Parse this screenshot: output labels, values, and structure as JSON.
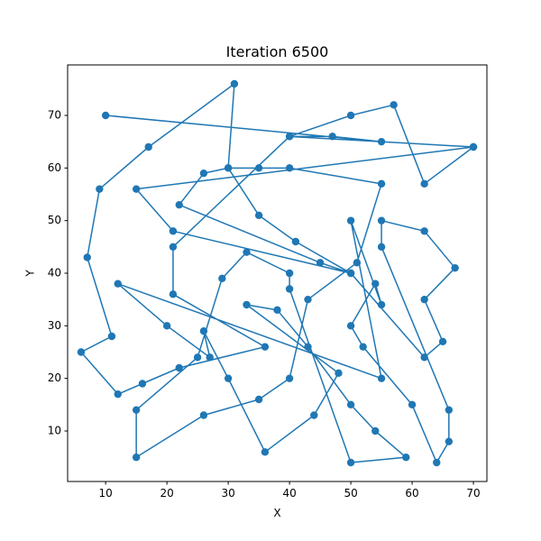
{
  "chart_data": {
    "type": "line",
    "title": "Iteration 6500",
    "xlabel": "X",
    "ylabel": "Y",
    "xlim": [
      3.8,
      72.2
    ],
    "ylim": [
      0.4,
      79.6
    ],
    "xticks": [
      10,
      20,
      30,
      40,
      50,
      60,
      70
    ],
    "yticks": [
      10,
      20,
      30,
      40,
      50,
      60,
      70
    ],
    "grid": false,
    "color": "#1f77b4",
    "marker": "circle",
    "series": [
      {
        "points": [
          [
            10,
            70
          ],
          [
            55,
            65
          ],
          [
            47,
            66
          ],
          [
            40,
            66
          ],
          [
            21,
            45
          ],
          [
            21,
            36
          ],
          [
            36,
            26
          ],
          [
            22,
            22
          ],
          [
            16,
            19
          ],
          [
            12,
            17
          ],
          [
            6,
            25
          ],
          [
            11,
            28
          ],
          [
            7,
            43
          ],
          [
            9,
            56
          ],
          [
            17,
            64
          ],
          [
            31,
            76
          ],
          [
            30,
            60
          ],
          [
            35,
            51
          ],
          [
            41,
            46
          ],
          [
            50,
            40
          ],
          [
            45,
            42
          ],
          [
            22,
            53
          ],
          [
            26,
            59
          ],
          [
            30,
            60
          ],
          [
            35,
            60
          ],
          [
            40,
            60
          ],
          [
            55,
            57
          ],
          [
            51,
            42
          ],
          [
            43,
            35
          ],
          [
            40,
            20
          ],
          [
            35,
            16
          ],
          [
            26,
            13
          ],
          [
            15,
            5
          ],
          [
            15,
            14
          ],
          [
            25,
            24
          ],
          [
            29,
            39
          ],
          [
            33,
            44
          ],
          [
            40,
            40
          ],
          [
            40,
            37
          ],
          [
            50,
            4
          ],
          [
            59,
            5
          ],
          [
            54,
            10
          ],
          [
            50,
            15
          ],
          [
            43,
            26
          ],
          [
            38,
            33
          ],
          [
            33,
            34
          ],
          [
            48,
            21
          ],
          [
            44,
            13
          ],
          [
            36,
            6
          ],
          [
            30,
            20
          ],
          [
            26,
            29
          ],
          [
            27,
            24
          ],
          [
            20,
            30
          ],
          [
            12,
            38
          ],
          [
            55,
            20
          ],
          [
            50,
            50
          ],
          [
            55,
            34
          ],
          [
            54,
            38
          ],
          [
            50,
            30
          ],
          [
            52,
            26
          ],
          [
            60,
            15
          ],
          [
            64,
            4
          ],
          [
            66,
            8
          ],
          [
            66,
            14
          ],
          [
            55,
            45
          ],
          [
            55,
            50
          ],
          [
            62,
            48
          ],
          [
            67,
            41
          ],
          [
            62,
            35
          ],
          [
            65,
            27
          ],
          [
            62,
            24
          ],
          [
            50,
            40
          ],
          [
            21,
            48
          ],
          [
            15,
            56
          ],
          [
            70,
            64
          ],
          [
            62,
            57
          ],
          [
            57,
            72
          ],
          [
            50,
            70
          ],
          [
            40,
            66
          ],
          [
            70,
            64
          ]
        ]
      }
    ]
  }
}
